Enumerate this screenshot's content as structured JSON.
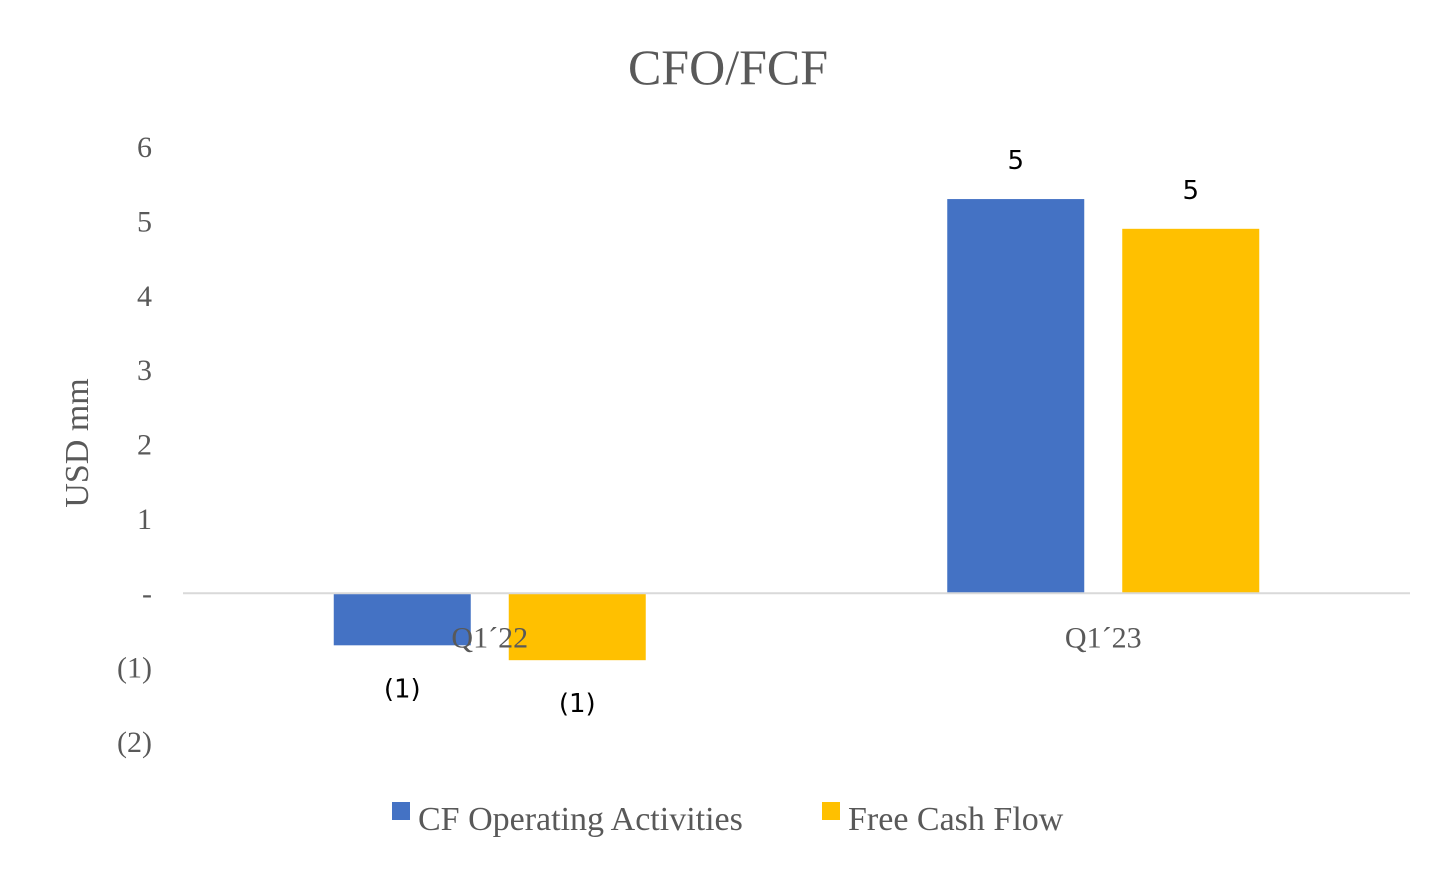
{
  "chart_data": {
    "type": "bar",
    "title": "CFO/FCF",
    "ylabel": "USD mm",
    "xlabel": "",
    "categories": [
      "Q1´22",
      "Q1´23"
    ],
    "series": [
      {
        "name": "CF Operating Activities",
        "color": "#4472C4",
        "values": [
          -0.7,
          5.3
        ],
        "data_labels": [
          "(1)",
          "5"
        ]
      },
      {
        "name": "Free Cash Flow",
        "color": "#FFC000",
        "values": [
          -0.9,
          4.9
        ],
        "data_labels": [
          "(1)",
          "5"
        ]
      }
    ],
    "ylim": [
      -2,
      6
    ],
    "yticks": [
      6,
      5,
      4,
      3,
      2,
      1,
      0,
      -1,
      -2
    ],
    "ytick_labels": [
      "6",
      "5",
      "4",
      "3",
      "2",
      "1",
      "-",
      "(1)",
      "(2)"
    ],
    "grid": false,
    "legend_position": "bottom"
  }
}
